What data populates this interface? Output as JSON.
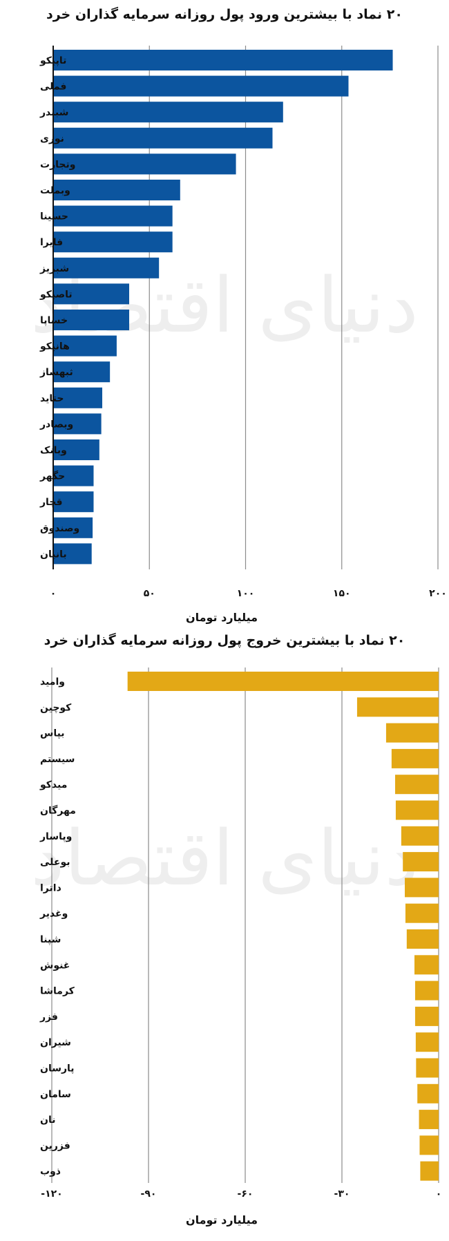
{
  "chart_data": [
    {
      "type": "bar",
      "orientation": "horizontal",
      "title": "۲۰ نماد با بیشترین ورود پول روزانه سرمایه گذاران خرد",
      "xlabel": "میلیارد تومان",
      "ylabel": "",
      "xlim": [
        0,
        200
      ],
      "xticks": [
        0,
        50,
        100,
        150,
        200
      ],
      "xtick_labels": [
        "۰",
        "۵۰",
        "۱۰۰",
        "۱۵۰",
        "۲۰۰"
      ],
      "grid": true,
      "color": "#0c559f",
      "categories": [
        "تاپیکو",
        "فملی",
        "شبندر",
        "نوری",
        "وتجارت",
        "وبملت",
        "حسینا",
        "فایرا",
        "شبریز",
        "تاصیکو",
        "خساپا",
        "هانیکو",
        "ثبهساز",
        "حتاید",
        "وبصادر",
        "وبانک",
        "حگهر",
        "قچار",
        "وصندوق",
        "بانیان"
      ],
      "values": [
        176.5,
        153.5,
        119.5,
        114,
        95,
        66,
        62,
        62,
        55,
        39.5,
        39.5,
        33,
        29.5,
        25.5,
        25,
        24,
        21,
        21,
        20.5,
        20
      ]
    },
    {
      "type": "bar",
      "orientation": "horizontal",
      "title": "۲۰ نماد با بیشترین خروج پول روزانه سرمایه گذاران خرد",
      "xlabel": "میلیارد تومان",
      "ylabel": "",
      "xlim": [
        -120,
        0
      ],
      "xticks": [
        -120,
        -90,
        -60,
        -30,
        0
      ],
      "xtick_labels": [
        "-۱۲۰",
        "-۹۰",
        "-۶۰",
        "-۳۰",
        "۰"
      ],
      "grid": true,
      "color": "#e3a816",
      "categories": [
        "وامید",
        "کوچین",
        "بپاس",
        "سیستم",
        "میدکو",
        "مهرگان",
        "وپاسار",
        "بوعلی",
        "داترا",
        "وغدیر",
        "شپنا",
        "غنوش",
        "کرماشا",
        "فزر",
        "شیران",
        "پارسان",
        "سامان",
        "نان",
        "فزرین",
        "ذوب"
      ],
      "values": [
        -96.5,
        -25.3,
        -16.3,
        -14.6,
        -13.5,
        -13.3,
        -11.6,
        -11.1,
        -10.5,
        -10.3,
        -9.9,
        -7.5,
        -7.3,
        -7.3,
        -7.1,
        -7.0,
        -6.6,
        -6.1,
        -5.9,
        -5.7
      ]
    }
  ],
  "watermark": "دنیای اقتصاد",
  "top_chart": {
    "title": "۲۰ نماد با بیشترین ورود پول روزانه سرمایه گذاران خرد",
    "axis_title": "میلیارد تومان"
  },
  "bottom_chart": {
    "title": "۲۰ نماد با بیشترین خروج پول روزانه سرمایه گذاران خرد",
    "axis_title": "میلیارد تومان"
  }
}
